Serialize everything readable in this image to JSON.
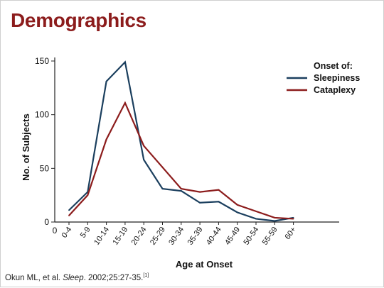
{
  "slide": {
    "title": "Demographics",
    "citation": {
      "prefix": "Okun ML, et al. ",
      "journal": "Sleep",
      "suffix": ". 2002;25:27-35.",
      "ref": "[1]"
    }
  },
  "colors": {
    "title": "#8c1c1c",
    "sleepiness": "#1b3f5e",
    "cataplexy": "#8c1c1c"
  },
  "chart_data": {
    "type": "line",
    "categories": [
      "0-4",
      "5-9",
      "10-14",
      "15-19",
      "20-24",
      "25-29",
      "30-34",
      "35-39",
      "40-44",
      "45-49",
      "50-54",
      "55-59",
      "60+"
    ],
    "series": [
      {
        "name": "Sleepiness",
        "color": "#1b3f5e",
        "values": [
          11,
          28,
          131,
          149,
          58,
          31,
          29,
          18,
          19,
          9,
          3,
          1,
          4
        ]
      },
      {
        "name": "Cataplexy",
        "color": "#8c1c1c",
        "values": [
          6,
          25,
          77,
          111,
          71,
          51,
          31,
          28,
          30,
          16,
          10,
          4,
          3
        ]
      }
    ],
    "xlabel": "Age at Onset",
    "ylabel": "No. of Subjects",
    "ylim": [
      0,
      150
    ],
    "yticks": [
      0,
      50,
      100,
      150
    ],
    "x_origin_label": "0",
    "legend_title": "Onset of:",
    "legend_placement": "top-right",
    "grid": false
  }
}
